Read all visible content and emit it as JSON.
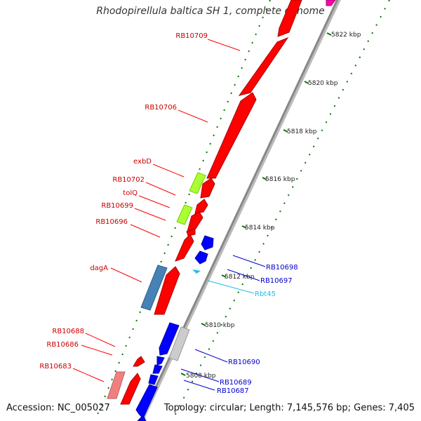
{
  "title": "Rhodopirellula baltica SH 1, complete genome",
  "footer": {
    "accession": "Accession: NC_005027",
    "topology": "Topology: circular; Length: 7,145,576 bp; Genes: 7,405"
  },
  "scale_labels": [
    "5808 kbp",
    "5810 kbp",
    "5812 kbp",
    "5814 kbp",
    "5816 kbp",
    "5818 kbp",
    "5820 kbp",
    "5822 kbp"
  ],
  "gene_labels": [
    "RB10709",
    "RB10706",
    "exbD",
    "RB10702",
    "tolQ",
    "RB10699",
    "RB10696",
    "dagA",
    "RB10688",
    "RB10686",
    "RB10683",
    "RB10698",
    "RB10697",
    "Rbt45",
    "RB10690",
    "RB10689",
    "RB10687"
  ],
  "colors": {
    "reverse_gene": "#ff0000",
    "forward_gene": "#0000ff",
    "trna": "#22bbee",
    "backbone": "#888888",
    "tick": "#007700"
  }
}
